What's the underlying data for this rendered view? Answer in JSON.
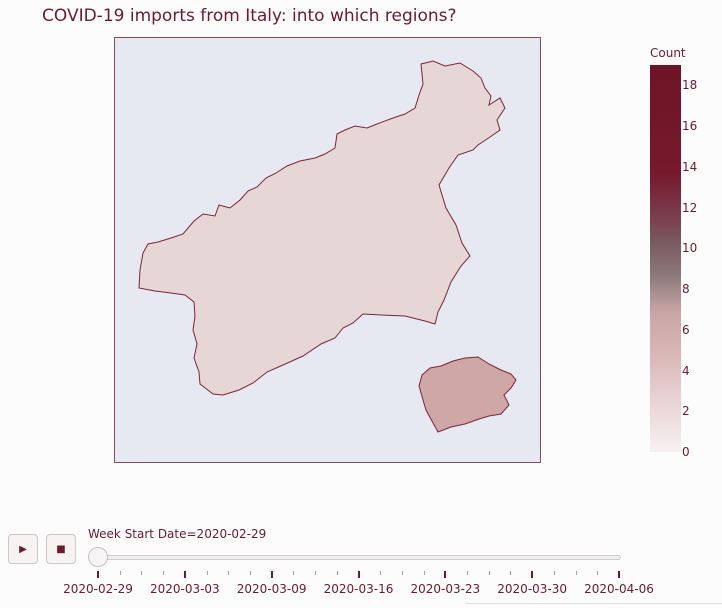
{
  "title": "COVID-19 imports from Italy: into which regions?",
  "map": {
    "regions": [
      {
        "id": "mainland",
        "value": 1,
        "color": "#e6d6d5"
      },
      {
        "id": "island",
        "value": 5,
        "color": "#cfa7a7"
      }
    ],
    "border_color": "#7a2634",
    "background": "#e6e9f1"
  },
  "colorbar": {
    "title": "Count",
    "min": 0,
    "max": 19,
    "ticks": [
      "0",
      "2",
      "4",
      "6",
      "8",
      "10",
      "12",
      "14",
      "16",
      "18"
    ]
  },
  "controls": {
    "play_icon": "play-icon",
    "stop_icon": "stop-icon",
    "play_glyph": "▶",
    "stop_glyph": "■"
  },
  "slider": {
    "label": "Week Start Date=2020-02-29",
    "current_index": 0,
    "steps": [
      "2020-02-29",
      "2020-03-03",
      "2020-03-09",
      "2020-03-16",
      "2020-03-23",
      "2020-03-30",
      "2020-04-06"
    ]
  }
}
